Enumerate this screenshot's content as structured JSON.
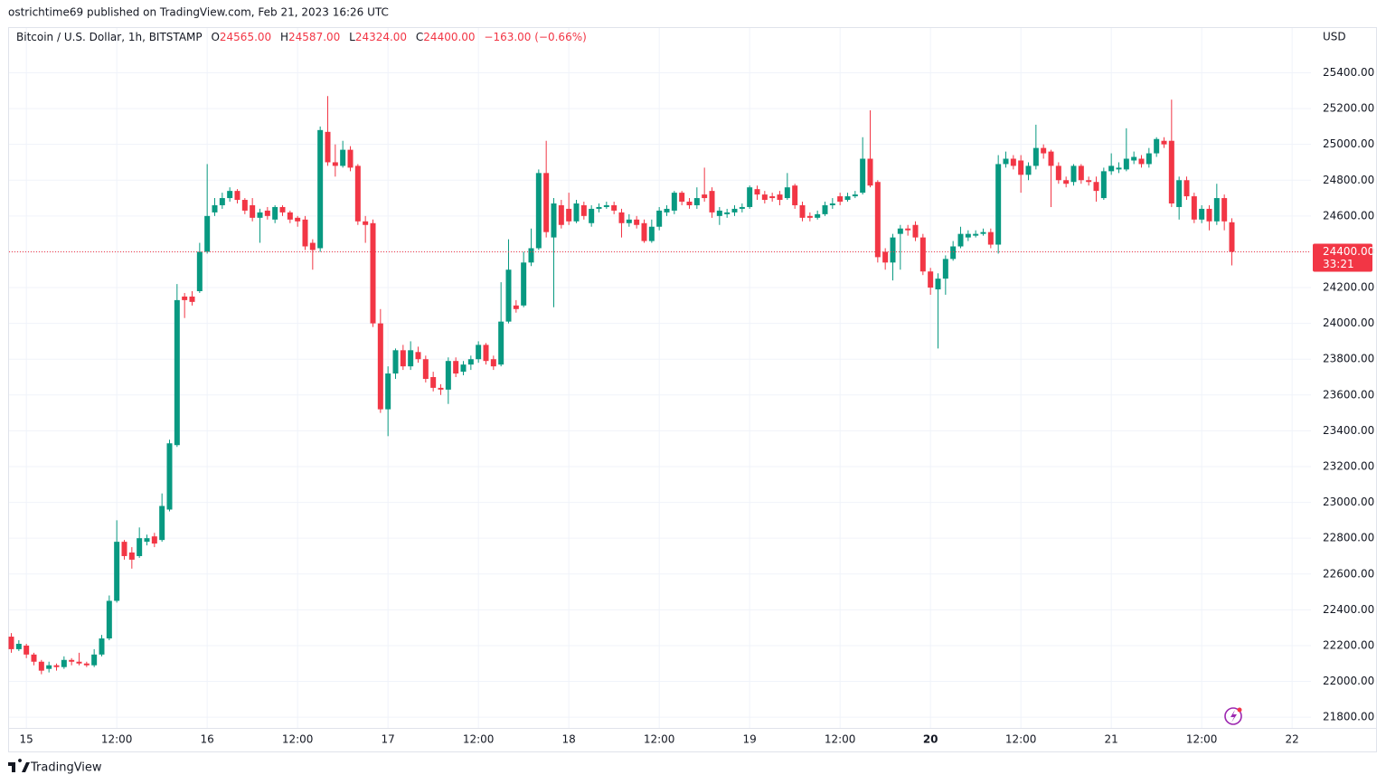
{
  "header": "ostrichtime69 published on TradingView.com, Feb 21, 2023 16:26 UTC",
  "footer": "TradingView",
  "chart_data": {
    "type": "candlestick",
    "title": "Bitcoin / U.S. Dollar, 1h, BITSTAMP",
    "legend": {
      "o": "O",
      "open": "24565.00",
      "h": "H",
      "high": "24587.00",
      "l": "L",
      "low": "24324.00",
      "c": "C",
      "close": "24400.00",
      "change": "−163.00 (−0.66%)"
    },
    "axis_label": "USD",
    "price_line": {
      "value": 24400,
      "label": "24400.00",
      "countdown": "33:21"
    },
    "up_color": "#089981",
    "down_color": "#f23645",
    "grid": true,
    "open": [
      22250,
      22180,
      22200,
      22150,
      22110,
      22070,
      22090,
      22080,
      22120,
      22110,
      22100,
      22090,
      22150,
      22240,
      22450,
      22780,
      22720,
      22700,
      22780,
      22810,
      22790,
      22960,
      23320,
      24150,
      24150,
      24180,
      24400,
      24620,
      24660,
      24700,
      24740,
      24690,
      24660,
      24590,
      24630,
      24580,
      24650,
      24620,
      24590,
      24580,
      24450,
      24420,
      25070,
      24900,
      24880,
      24970,
      24880,
      24570,
      24560,
      24000,
      23520,
      23720,
      23850,
      23760,
      23840,
      23800,
      23700,
      23640,
      23630,
      23790,
      23730,
      23770,
      23800,
      23880,
      23800,
      23770,
      24010,
      24100,
      24100,
      24340,
      24420,
      24840,
      24480,
      24660,
      24640,
      24570,
      24660,
      24560,
      24640,
      24650,
      24660,
      24620,
      24560,
      24580,
      24560,
      24460,
      24540,
      24620,
      24630,
      24730,
      24680,
      24660,
      24720,
      24740,
      24600,
      24610,
      24620,
      24640,
      24650,
      24750,
      24720,
      24710,
      24720,
      24700,
      24770,
      24660,
      24600,
      24590,
      24610,
      24660,
      24710,
      24690,
      24710,
      24730,
      24920,
      24790,
      24400,
      24340,
      24500,
      24530,
      24550,
      24480,
      24290,
      24190,
      24250,
      24360,
      24430,
      24480,
      24490,
      24500,
      24510,
      24440,
      24890,
      24920,
      24910,
      24830,
      24880,
      24980,
      24960,
      24880,
      24800,
      24790,
      24880,
      24800,
      24790,
      24700,
      24850,
      24860,
      24860,
      24910,
      24920,
      24890,
      24950,
      25020,
      25020,
      24650,
      24800,
      24710,
      24580,
      24640,
      24570,
      24700,
      24565
    ],
    "high": [
      22270,
      22230,
      22210,
      22160,
      22120,
      22110,
      22100,
      22140,
      22130,
      22160,
      22110,
      22180,
      22260,
      22480,
      22900,
      22790,
      22750,
      22860,
      22820,
      22830,
      23050,
      23350,
      24220,
      24170,
      24180,
      24450,
      24890,
      24700,
      24730,
      24760,
      24750,
      24700,
      24700,
      24640,
      24650,
      24660,
      24660,
      24630,
      24600,
      24600,
      24470,
      25100,
      25270,
      25000,
      25020,
      24990,
      24890,
      24600,
      24580,
      24080,
      23760,
      23860,
      23880,
      23900,
      23870,
      23820,
      23730,
      23660,
      23810,
      23810,
      23790,
      23820,
      23900,
      23890,
      23820,
      24230,
      24470,
      24130,
      24400,
      24530,
      24860,
      25020,
      24700,
      24690,
      24730,
      24690,
      24680,
      24660,
      24670,
      24680,
      24680,
      24640,
      24610,
      24600,
      24580,
      24580,
      24650,
      24660,
      24740,
      24740,
      24700,
      24760,
      24870,
      24760,
      24650,
      24640,
      24660,
      24670,
      24770,
      24770,
      24740,
      24730,
      24740,
      24840,
      24780,
      24680,
      24620,
      24630,
      24680,
      24700,
      24730,
      24730,
      24740,
      25040,
      25190,
      24800,
      24420,
      24500,
      24550,
      24550,
      24570,
      24500,
      24310,
      24280,
      24380,
      24460,
      24540,
      24520,
      24520,
      24530,
      24530,
      24940,
      24960,
      24940,
      24940,
      24900,
      25110,
      25000,
      24970,
      24900,
      24820,
      24890,
      24890,
      24820,
      24820,
      24870,
      24950,
      24900,
      25090,
      24960,
      24940,
      24980,
      25040,
      25040,
      25250,
      24820,
      24820,
      24730,
      24660,
      24660,
      24780,
      24720,
      24587
    ],
    "low": [
      22160,
      22170,
      22130,
      22090,
      22040,
      22050,
      22060,
      22070,
      22090,
      22090,
      22080,
      22080,
      22140,
      22230,
      22440,
      22680,
      22630,
      22690,
      22760,
      22750,
      22780,
      22950,
      23310,
      24030,
      24100,
      24170,
      24390,
      24600,
      24640,
      24680,
      24670,
      24610,
      24570,
      24450,
      24580,
      24560,
      24600,
      24560,
      24540,
      24410,
      24300,
      24400,
      24880,
      24820,
      24870,
      24850,
      24550,
      24450,
      23980,
      23500,
      23370,
      23690,
      23740,
      23740,
      23780,
      23670,
      23620,
      23600,
      23550,
      23700,
      23710,
      23740,
      23780,
      23770,
      23740,
      23760,
      24000,
      24060,
      24090,
      24320,
      24410,
      24480,
      24090,
      24530,
      24550,
      24560,
      24580,
      24540,
      24620,
      24640,
      24610,
      24480,
      24540,
      24530,
      24450,
      24450,
      24520,
      24600,
      24610,
      24660,
      24640,
      24640,
      24680,
      24590,
      24550,
      24590,
      24600,
      24620,
      24640,
      24690,
      24670,
      24680,
      24660,
      24690,
      24640,
      24570,
      24570,
      24580,
      24600,
      24640,
      24660,
      24680,
      24700,
      24720,
      24760,
      24340,
      24300,
      24240,
      24300,
      24490,
      24460,
      24270,
      24160,
      23860,
      24160,
      24350,
      24420,
      24460,
      24480,
      24490,
      24420,
      24390,
      24870,
      24860,
      24730,
      24800,
      24860,
      24920,
      24650,
      24780,
      24760,
      24770,
      24780,
      24770,
      24680,
      24690,
      24830,
      24840,
      24850,
      24890,
      24870,
      24870,
      24930,
      24980,
      24650,
      24580,
      24690,
      24560,
      24560,
      24520,
      24550,
      24520,
      24324
    ],
    "close": [
      22180,
      22210,
      22150,
      22110,
      22060,
      22090,
      22080,
      22120,
      22110,
      22100,
      22090,
      22150,
      22240,
      22450,
      22780,
      22700,
      22680,
      22800,
      22800,
      22770,
      22980,
      23330,
      24130,
      24130,
      24120,
      24400,
      24600,
      24660,
      24700,
      24740,
      24690,
      24630,
      24590,
      24620,
      24600,
      24650,
      24620,
      24580,
      24570,
      24430,
      24410,
      25080,
      24900,
      24880,
      24970,
      24870,
      24570,
      24550,
      24000,
      23520,
      23720,
      23850,
      23760,
      23850,
      23800,
      23690,
      23640,
      23630,
      23790,
      23720,
      23770,
      23800,
      23880,
      23790,
      23760,
      24010,
      24300,
      24080,
      24340,
      24420,
      24840,
      24510,
      24670,
      24550,
      24570,
      24670,
      24600,
      24640,
      24650,
      24660,
      24630,
      24560,
      24580,
      24550,
      24460,
      24540,
      24630,
      24640,
      24730,
      24680,
      24660,
      24700,
      24700,
      24620,
      24630,
      24620,
      24640,
      24650,
      24760,
      24720,
      24690,
      24700,
      24690,
      24760,
      24660,
      24590,
      24590,
      24610,
      24660,
      24670,
      24680,
      24710,
      24720,
      24920,
      24770,
      24370,
      24340,
      24480,
      24530,
      24520,
      24480,
      24290,
      24200,
      24250,
      24360,
      24430,
      24500,
      24500,
      24500,
      24510,
      24440,
      24890,
      24920,
      24880,
      24830,
      24880,
      24980,
      24950,
      24880,
      24800,
      24780,
      24880,
      24800,
      24790,
      24740,
      24850,
      24880,
      24870,
      24920,
      24930,
      24890,
      24950,
      25030,
      25000,
      24670,
      24800,
      24710,
      24580,
      24640,
      24570,
      24700,
      24570,
      24400
    ],
    "xlim": [
      -0.3,
      172.5
    ],
    "xticks": [
      {
        "value": 2,
        "label": "15"
      },
      {
        "value": 14,
        "label": "12:00"
      },
      {
        "value": 26,
        "label": "16"
      },
      {
        "value": 38,
        "label": "12:00"
      },
      {
        "value": 50,
        "label": "17"
      },
      {
        "value": 62,
        "label": "12:00"
      },
      {
        "value": 74,
        "label": "18"
      },
      {
        "value": 86,
        "label": "12:00"
      },
      {
        "value": 98,
        "label": "19"
      },
      {
        "value": 110,
        "label": "12:00"
      },
      {
        "value": 122,
        "label": "20"
      },
      {
        "value": 134,
        "label": "12:00"
      },
      {
        "value": 146,
        "label": "21"
      },
      {
        "value": 158,
        "label": "12:00"
      },
      {
        "value": 170,
        "label": "22"
      }
    ],
    "ylim": [
      21740,
      25650
    ],
    "yticks": [
      {
        "value": 21800,
        "label": "21800.00"
      },
      {
        "value": 22000,
        "label": "22000.00"
      },
      {
        "value": 22200,
        "label": "22200.00"
      },
      {
        "value": 22400,
        "label": "22400.00"
      },
      {
        "value": 22600,
        "label": "22600.00"
      },
      {
        "value": 22800,
        "label": "22800.00"
      },
      {
        "value": 23000,
        "label": "23000.00"
      },
      {
        "value": 23200,
        "label": "23200.00"
      },
      {
        "value": 23400,
        "label": "23400.00"
      },
      {
        "value": 23600,
        "label": "23600.00"
      },
      {
        "value": 23800,
        "label": "23800.00"
      },
      {
        "value": 24000,
        "label": "24000.00"
      },
      {
        "value": 24200,
        "label": "24200.00"
      },
      {
        "value": 24400,
        "label": "24400.00"
      },
      {
        "value": 24600,
        "label": "24600.00"
      },
      {
        "value": 24800,
        "label": "24800.00"
      },
      {
        "value": 25000,
        "label": "25000.00"
      },
      {
        "value": 25200,
        "label": "25200.00"
      },
      {
        "value": 25400,
        "label": "25400.00"
      }
    ]
  }
}
